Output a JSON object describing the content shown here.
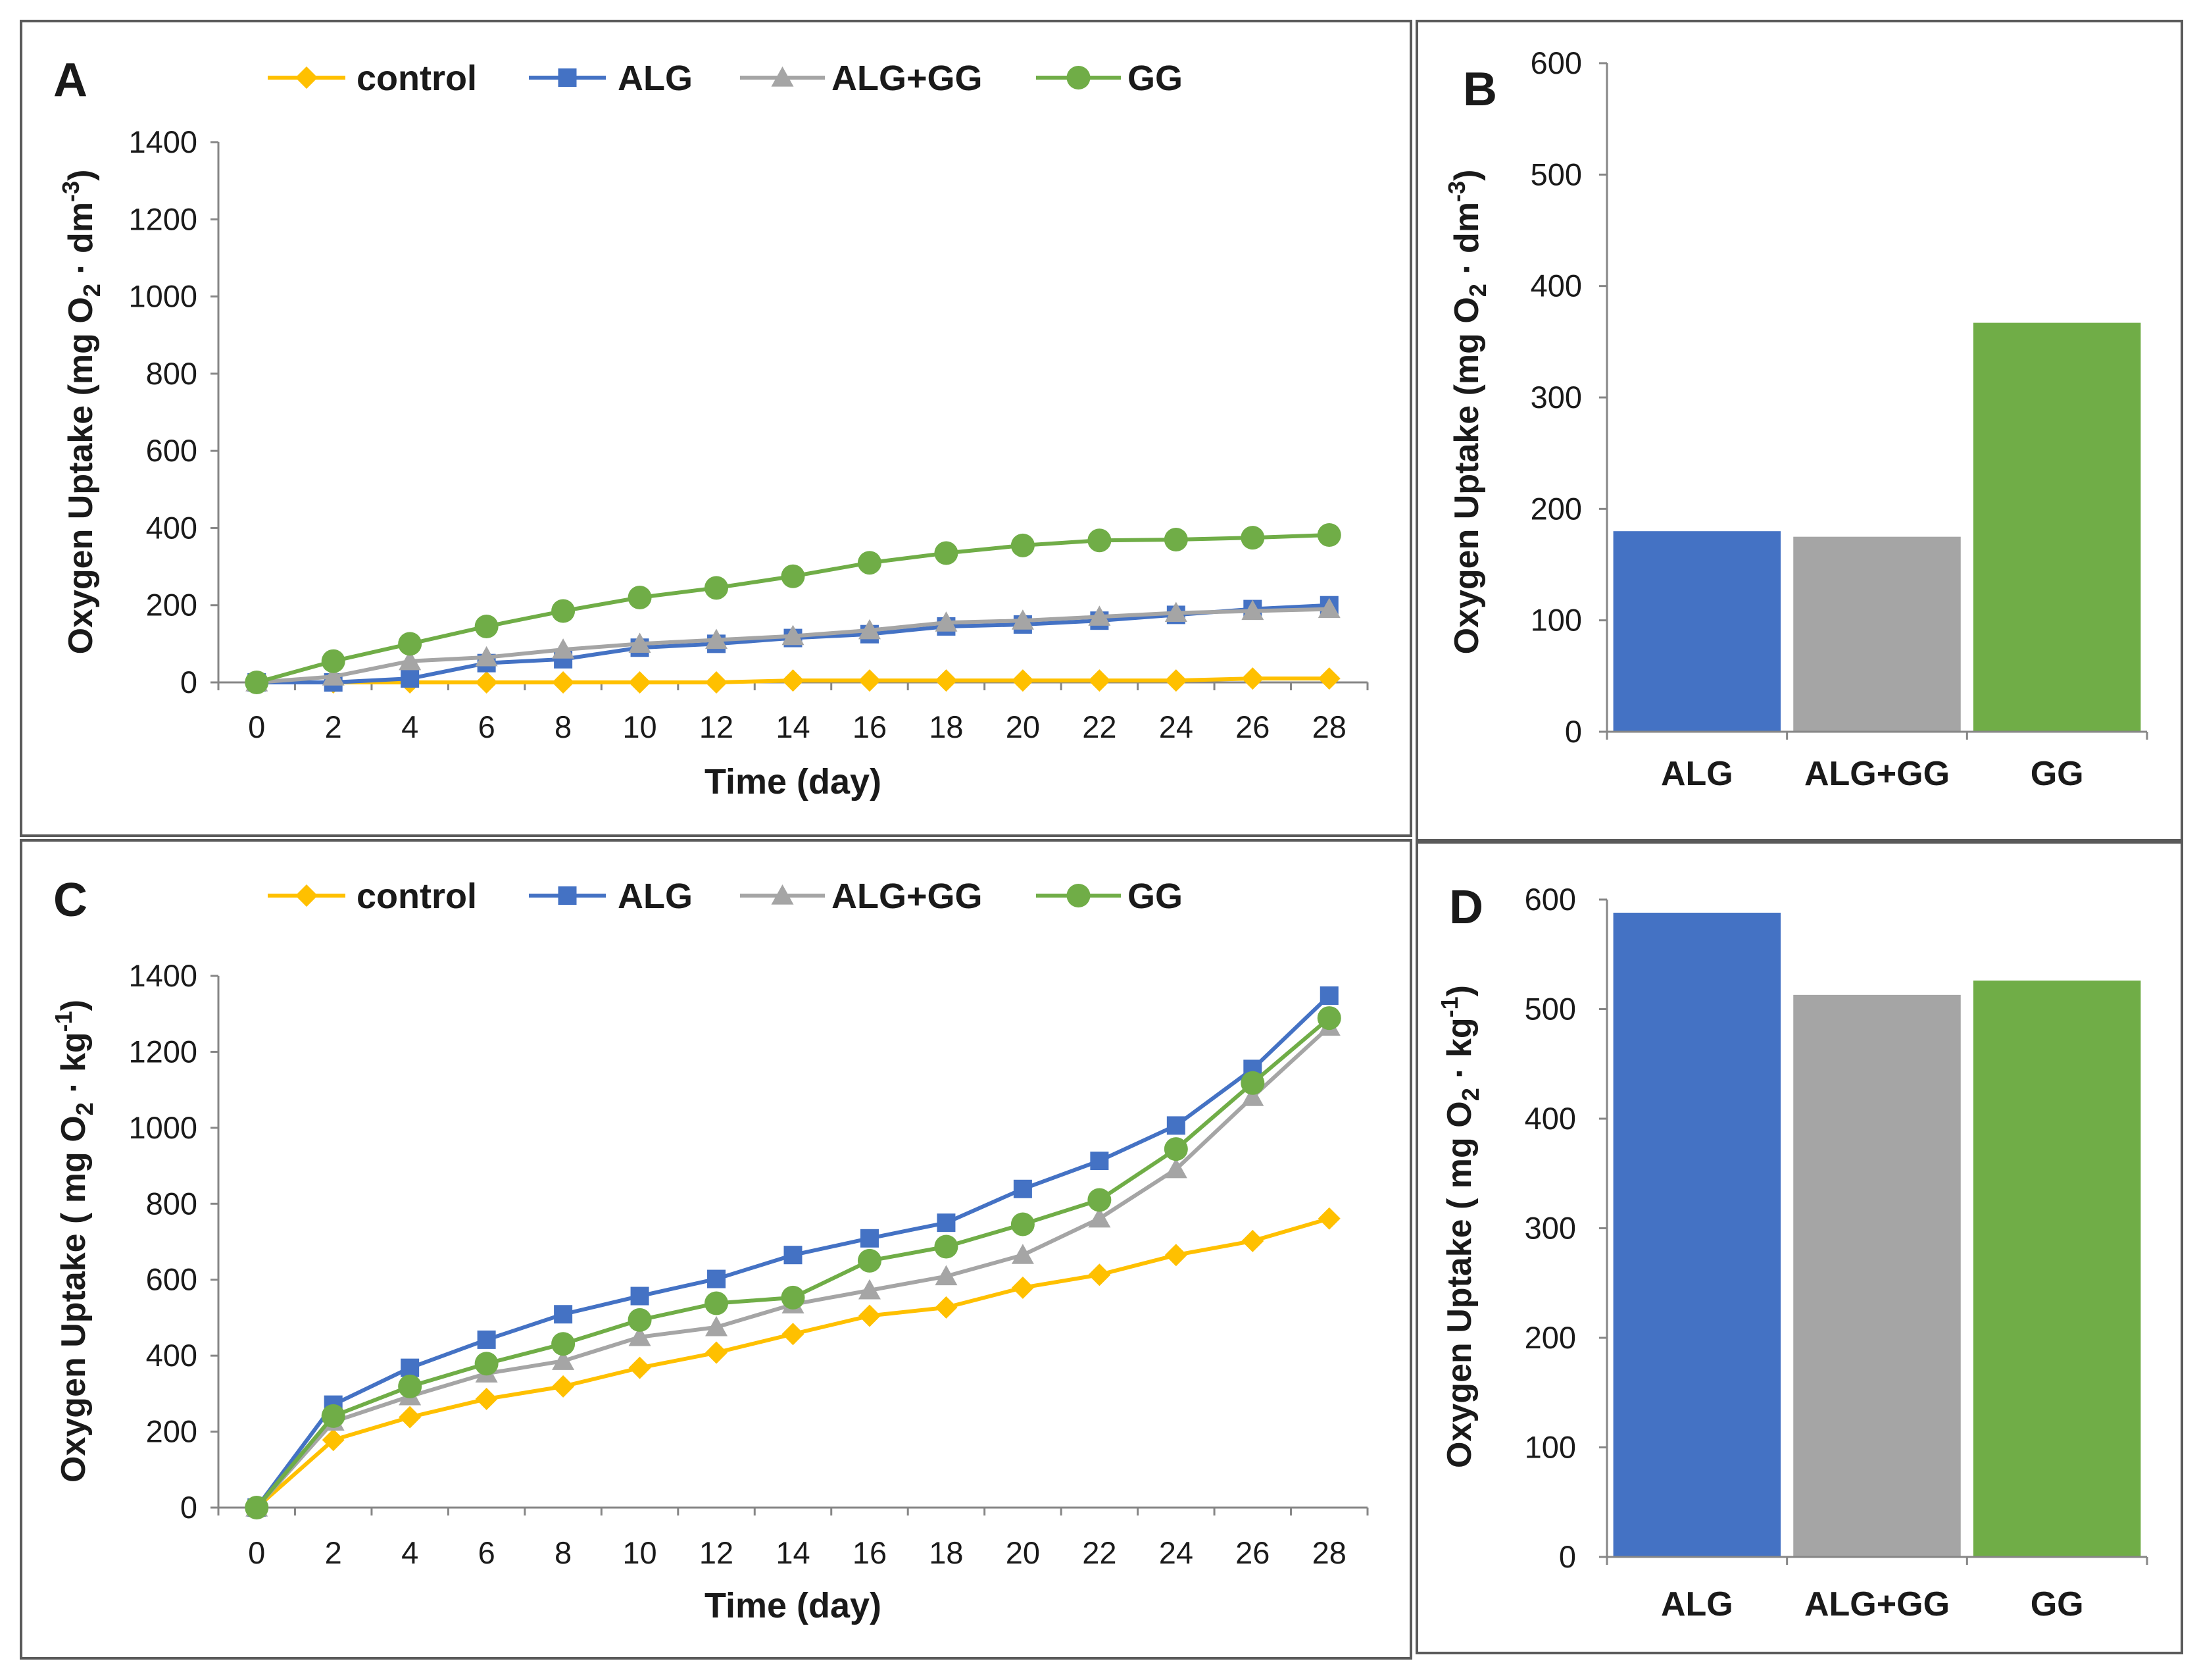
{
  "chart_data": [
    {
      "panel": "A",
      "type": "line",
      "xlabel": "Time (day)",
      "ylabel": {
        "pre": "Oxygen Uptake (mg O",
        "sub": "2",
        "mid": " · dm",
        "sup": "-3",
        "post": ")"
      },
      "categories": [
        "0",
        "2",
        "4",
        "6",
        "8",
        "10",
        "12",
        "14",
        "16",
        "18",
        "20",
        "22",
        "24",
        "26",
        "28"
      ],
      "ylim": [
        0,
        1400
      ],
      "yticks": [
        0,
        200,
        400,
        600,
        800,
        1000,
        1200,
        1400
      ],
      "series": [
        {
          "name": "control",
          "marker": "diamond",
          "color": "#FFC000",
          "values": [
            0,
            0,
            0,
            0,
            0,
            0,
            0,
            5,
            5,
            5,
            5,
            5,
            5,
            10,
            10
          ]
        },
        {
          "name": "ALG",
          "marker": "square",
          "color": "#4472C4",
          "values": [
            0,
            0,
            10,
            50,
            60,
            90,
            100,
            115,
            125,
            145,
            150,
            160,
            175,
            190,
            200
          ]
        },
        {
          "name": "ALG+GG",
          "marker": "triangle",
          "color": "#A5A5A5",
          "values": [
            0,
            15,
            55,
            65,
            85,
            100,
            110,
            120,
            135,
            155,
            160,
            170,
            180,
            185,
            190
          ]
        },
        {
          "name": "GG",
          "marker": "circle",
          "color": "#70AD47",
          "values": [
            0,
            55,
            100,
            145,
            185,
            220,
            245,
            275,
            310,
            335,
            355,
            368,
            370,
            375,
            382
          ]
        }
      ]
    },
    {
      "panel": "B",
      "type": "bar",
      "ylabel": {
        "pre": "Oxygen Uptake (mg O",
        "sub": "2",
        "mid": " · dm",
        "sup": "-3",
        "post": ")"
      },
      "categories": [
        "ALG",
        "ALG+GG",
        "GG"
      ],
      "values": [
        180,
        175,
        367
      ],
      "bar_colors": [
        "#4472C4",
        "#A5A5A5",
        "#70AD47"
      ],
      "ylim": [
        0,
        600
      ],
      "yticks": [
        0,
        100,
        200,
        300,
        400,
        500,
        600
      ]
    },
    {
      "panel": "C",
      "type": "line",
      "xlabel": "Time (day)",
      "ylabel": {
        "pre": "Oxygen Uptake ( mg O",
        "sub": "2",
        "mid": " · kg",
        "sup": "-1",
        "post": ")"
      },
      "categories": [
        "0",
        "2",
        "4",
        "6",
        "8",
        "10",
        "12",
        "14",
        "16",
        "18",
        "20",
        "22",
        "24",
        "26",
        "28"
      ],
      "ylim": [
        0,
        1400
      ],
      "yticks": [
        0,
        200,
        400,
        600,
        800,
        1000,
        1200,
        1400
      ],
      "series": [
        {
          "name": "control",
          "marker": "diamond",
          "color": "#FFC000",
          "values": [
            0,
            178,
            238,
            286,
            319,
            368,
            408,
            457,
            505,
            527,
            579,
            613,
            665,
            702,
            761
          ]
        },
        {
          "name": "ALG",
          "marker": "square",
          "color": "#4472C4",
          "values": [
            0,
            271,
            368,
            442,
            509,
            557,
            602,
            665,
            709,
            750,
            839,
            913,
            1006,
            1155,
            1348
          ]
        },
        {
          "name": "ALG+GG",
          "marker": "triangle",
          "color": "#A5A5A5",
          "values": [
            0,
            226,
            293,
            353,
            386,
            449,
            475,
            535,
            572,
            609,
            665,
            761,
            891,
            1081,
            1266
          ]
        },
        {
          "name": "GG",
          "marker": "circle",
          "color": "#70AD47",
          "values": [
            0,
            241,
            319,
            379,
            431,
            494,
            538,
            553,
            650,
            687,
            746,
            810,
            944,
            1118,
            1289
          ]
        }
      ]
    },
    {
      "panel": "D",
      "type": "bar",
      "ylabel": {
        "pre": "Oxygen Uptake ( mg O",
        "sub": "2",
        "mid": " · kg",
        "sup": "-1",
        "post": ")"
      },
      "categories": [
        "ALG",
        "ALG+GG",
        "GG"
      ],
      "values": [
        588,
        513,
        526
      ],
      "bar_colors": [
        "#4472C4",
        "#A5A5A5",
        "#70AD47"
      ],
      "ylim": [
        0,
        600
      ],
      "yticks": [
        0,
        100,
        200,
        300,
        400,
        500,
        600
      ]
    }
  ]
}
